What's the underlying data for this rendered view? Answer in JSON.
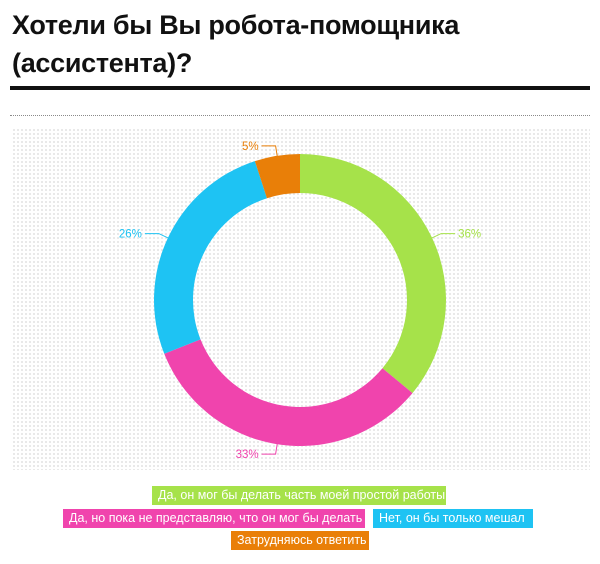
{
  "header": {
    "title_line1": "Хотели бы Вы робота-помощника",
    "title_line2": "(ассистента)?"
  },
  "chart_data": {
    "type": "pie",
    "title": "Хотели бы Вы робота-помощника (ассистента)?",
    "donut": true,
    "series": [
      {
        "name": "Да, он мог бы делать часть моей простой работы",
        "value": 36,
        "label": "36%",
        "color": "#a6e24a"
      },
      {
        "name": "Да, но пока не представляю, что он мог бы делать",
        "value": 33,
        "label": "33%",
        "color": "#f044ad"
      },
      {
        "name": "Нет, он бы только мешал",
        "value": 26,
        "label": "26%",
        "color": "#1ec3f3"
      },
      {
        "name": "Затрудняюсь ответить",
        "value": 5,
        "label": "5%",
        "color": "#e97f08"
      }
    ],
    "legend_position": "bottom",
    "grid": false
  }
}
